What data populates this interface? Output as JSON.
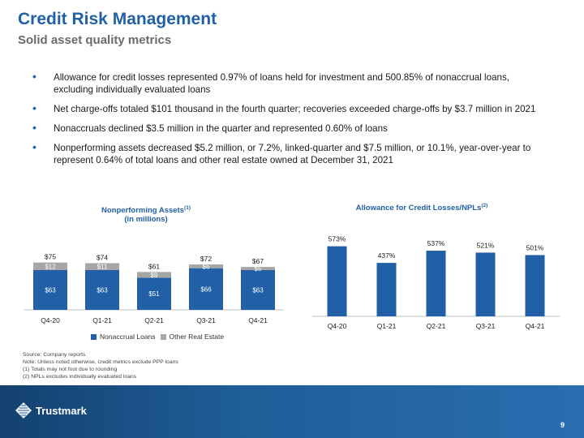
{
  "header": {
    "title": "Credit Risk Management",
    "subtitle": "Solid asset quality metrics"
  },
  "bullets": [
    "Allowance for credit losses represented 0.97% of loans held for investment and 500.85% of nonaccrual loans, excluding individually evaluated loans",
    "Net charge-offs totaled $101 thousand in the fourth quarter; recoveries exceeded charge-offs by $3.7 million in 2021",
    "Nonaccruals declined $3.5 million in the quarter and represented 0.60% of loans",
    "Nonperforming assets decreased $5.2 million, or 7.2%, linked-quarter and $7.5 million, or 10.1%, year-over-year to represent 0.64% of total loans and other real estate owned at December 31, 2021"
  ],
  "npa_chart": {
    "title_line1": "Nonperforming Assets",
    "title_sup": "(1)",
    "title_line2": "(in millions)",
    "legend": [
      "Nonaccrual Loans",
      "Other Real Estate"
    ]
  },
  "acl_chart": {
    "title": "Allowance for Credit Losses/NPLs",
    "title_sup": "(2)"
  },
  "chart_data": [
    {
      "type": "bar",
      "stacked": true,
      "categories": [
        "Q4-20",
        "Q1-21",
        "Q2-21",
        "Q3-21",
        "Q4-21"
      ],
      "series": [
        {
          "name": "Nonaccrual Loans",
          "values": [
            63,
            63,
            51,
            66,
            63
          ],
          "labels": [
            "$63",
            "$63",
            "$51",
            "$66",
            "$63"
          ],
          "color": "#2160a6"
        },
        {
          "name": "Other Real Estate",
          "values": [
            12,
            11,
            9,
            6,
            5
          ],
          "labels": [
            "$12",
            "$11",
            "$9",
            "$6",
            "$5"
          ],
          "color": "#a6a6a6"
        }
      ],
      "totals": [
        "$75",
        "$74",
        "$61",
        "$72",
        "$67"
      ],
      "total_values": [
        75,
        74,
        61,
        72,
        67
      ],
      "ylim": [
        0,
        90
      ]
    },
    {
      "type": "bar",
      "categories": [
        "Q4-20",
        "Q1-21",
        "Q2-21",
        "Q3-21",
        "Q4-21"
      ],
      "values": [
        573,
        437,
        537,
        521,
        501
      ],
      "labels": [
        "573%",
        "437%",
        "537%",
        "521%",
        "501%"
      ],
      "color": "#2160a6",
      "ylim": [
        0,
        650
      ]
    }
  ],
  "notes": [
    "Source: Company reports",
    "Note: Unless noted otherwise, credit metrics exclude PPP loans",
    "(1) Totals may not foot due to rounding",
    "(2) NPLs excludes individually evaluated loans"
  ],
  "footer": {
    "logo_text": "Trustmark",
    "page_number": "9"
  },
  "colors": {
    "brand_blue": "#2160a6",
    "gray_bar": "#a6a6a6",
    "subtitle_gray": "#6b6b6b",
    "footer_dark": "#13416f"
  }
}
